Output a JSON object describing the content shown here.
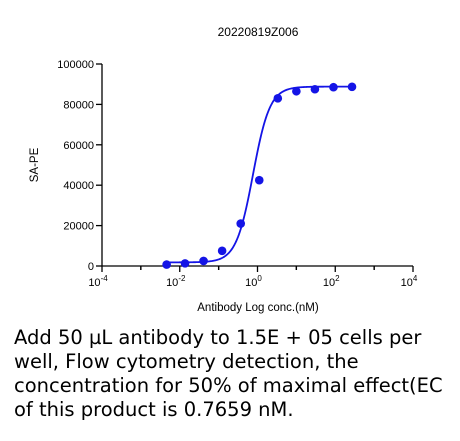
{
  "chart_data": {
    "type": "scatter",
    "title": "20220819Z006",
    "xlabel": "Antibody Log conc.(nM)",
    "ylabel": "SA-PE",
    "x_scale": "log",
    "xlim": [
      0.0001,
      10000
    ],
    "ylim": [
      0,
      100000
    ],
    "x_ticks": [
      {
        "value": 0.0001,
        "base": "10",
        "exp": "-4"
      },
      {
        "value": 0.01,
        "base": "10",
        "exp": "-2"
      },
      {
        "value": 1,
        "base": "10",
        "exp": "0"
      },
      {
        "value": 100,
        "base": "10",
        "exp": "2"
      },
      {
        "value": 10000,
        "base": "10",
        "exp": "4"
      }
    ],
    "y_ticks": [
      {
        "value": 0,
        "label": "0"
      },
      {
        "value": 20000,
        "label": "20000"
      },
      {
        "value": 40000,
        "label": "40000"
      },
      {
        "value": 60000,
        "label": "60000"
      },
      {
        "value": 80000,
        "label": "80000"
      },
      {
        "value": 100000,
        "label": "100000"
      }
    ],
    "grid": false,
    "legend": "none",
    "series": [
      {
        "color": "#1414e6",
        "points": [
          {
            "x": 0.0046,
            "y": 700
          },
          {
            "x": 0.0137,
            "y": 1300
          },
          {
            "x": 0.041,
            "y": 2500
          },
          {
            "x": 0.123,
            "y": 7500
          },
          {
            "x": 0.37,
            "y": 21000
          },
          {
            "x": 1.11,
            "y": 42500
          },
          {
            "x": 3.33,
            "y": 83000
          },
          {
            "x": 10,
            "y": 86500
          },
          {
            "x": 30,
            "y": 87500
          },
          {
            "x": 90,
            "y": 88500
          },
          {
            "x": 270,
            "y": 88700
          }
        ],
        "fit": {
          "model": "4PL",
          "bottom": 1800,
          "top": 88800,
          "ec50": 0.7659,
          "hill": 2.0
        }
      }
    ]
  },
  "caption": {
    "lines": [
      "Add 50 µL antibody to 1.5E + 05 cells per",
      "well, Flow cytometry detection, the",
      "concentration for 50% of maximal effect(EC",
      "of this product is 0.7659 nM."
    ]
  }
}
